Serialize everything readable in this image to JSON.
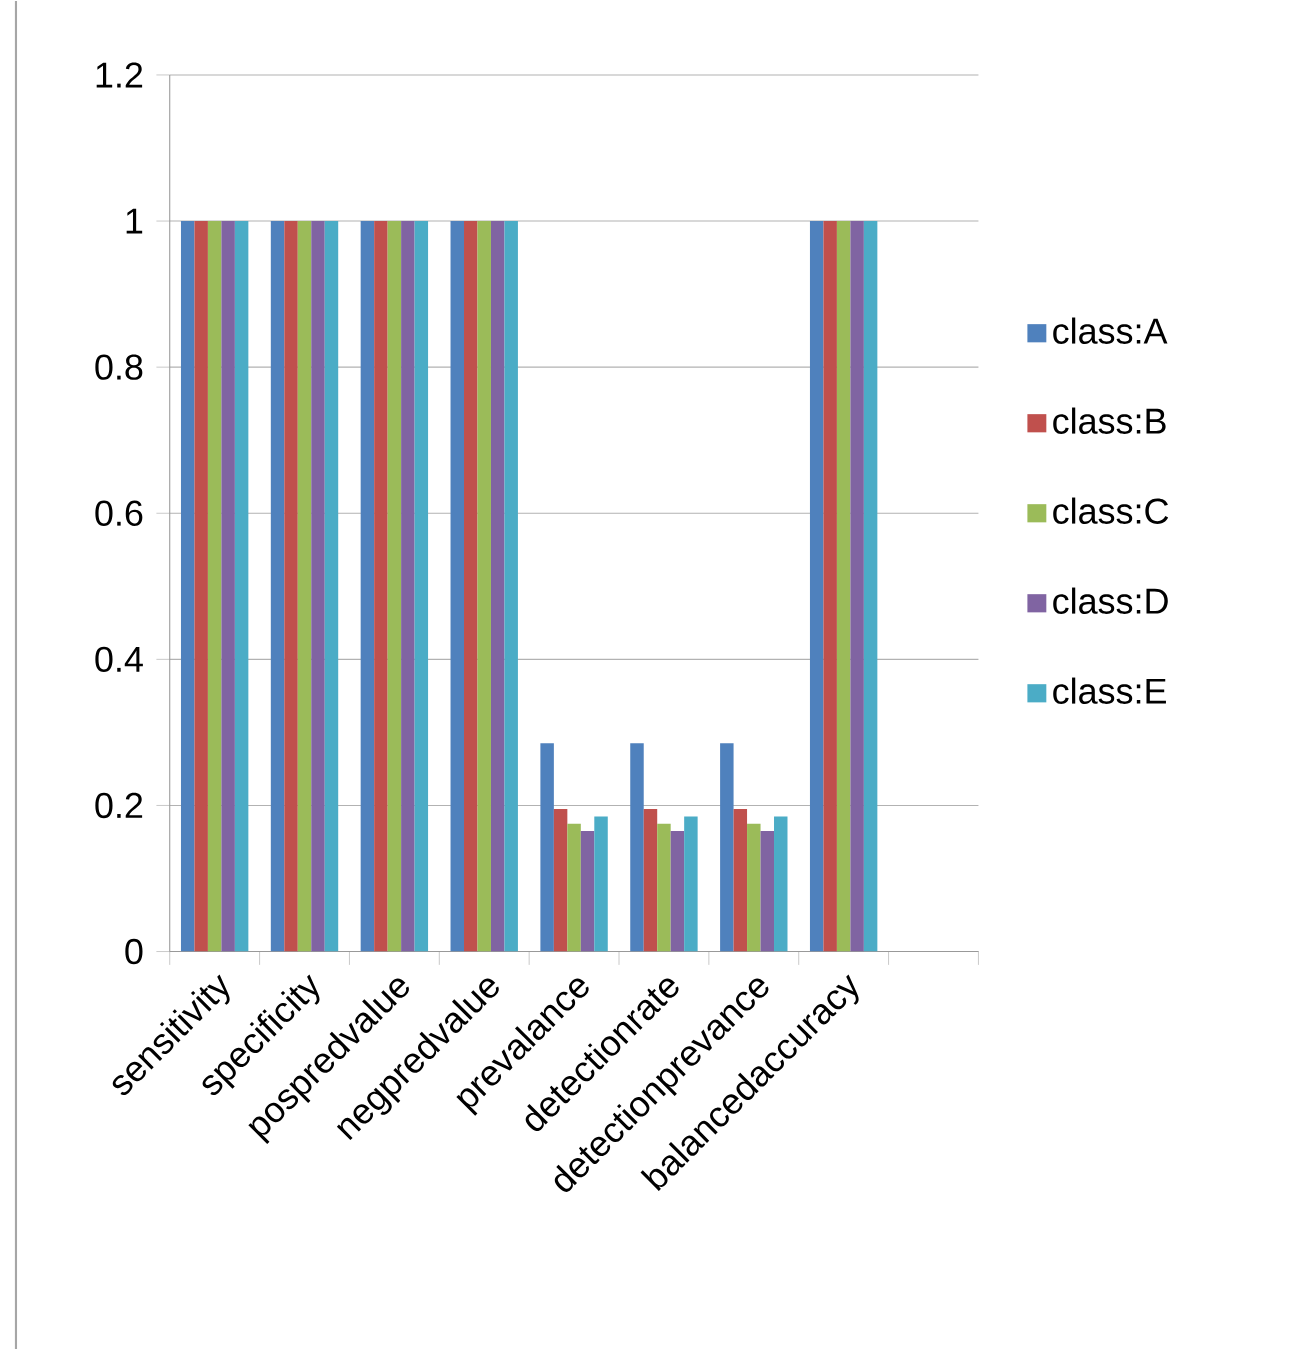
{
  "chart_data": {
    "type": "bar",
    "categories": [
      "sensitivity",
      "specificity",
      "pospredvalue",
      "negpredvalue",
      "prevalance",
      "detectionrate",
      "detectionprevance",
      "balancedaccuracy",
      null
    ],
    "series": [
      {
        "name": "class:A",
        "color": "#4f81bd",
        "values": [
          1,
          1,
          1,
          1,
          0.285,
          0.285,
          0.285,
          1,
          null
        ]
      },
      {
        "name": "class:B",
        "color": "#c0504d",
        "values": [
          1,
          1,
          1,
          1,
          0.195,
          0.195,
          0.195,
          1,
          null
        ]
      },
      {
        "name": "class:C",
        "color": "#9bbb59",
        "values": [
          1,
          1,
          1,
          1,
          0.175,
          0.175,
          0.175,
          1,
          null
        ]
      },
      {
        "name": "class:D",
        "color": "#8064a2",
        "values": [
          1,
          1,
          1,
          1,
          0.165,
          0.165,
          0.165,
          1,
          null
        ]
      },
      {
        "name": "class:E",
        "color": "#4bacc6",
        "values": [
          1,
          1,
          1,
          1,
          0.185,
          0.185,
          0.185,
          1,
          null
        ]
      }
    ],
    "ylim": [
      0,
      1.2
    ],
    "yticks": [
      0,
      0.2,
      0.4,
      0.6,
      0.8,
      1,
      1.2
    ],
    "grid": "y",
    "legend": "right"
  }
}
